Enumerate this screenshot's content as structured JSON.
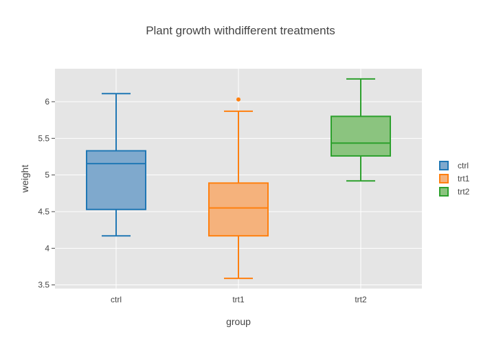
{
  "chart_data": {
    "type": "box",
    "title": "Plant growth withdifferent treatments",
    "xlabel": "group",
    "ylabel": "weight",
    "categories": [
      "ctrl",
      "trt1",
      "trt2"
    ],
    "ylim": [
      3.45,
      6.45
    ],
    "yticks": [
      3.5,
      4,
      4.5,
      5,
      5.5,
      6
    ],
    "ytick_labels": [
      "3.5",
      "4",
      "4.5",
      "5",
      "5.5",
      "6"
    ],
    "grid": true,
    "legend_position": "right",
    "series": [
      {
        "name": "ctrl",
        "color": "#1f77b4",
        "fill": "#7fa9cd",
        "min": 4.17,
        "q1": 4.53,
        "median": 5.155,
        "q3": 5.33,
        "max": 6.11,
        "outliers": []
      },
      {
        "name": "trt1",
        "color": "#ff7f0e",
        "fill": "#f5b27c",
        "min": 3.59,
        "q1": 4.17,
        "median": 4.55,
        "q3": 4.89,
        "max": 5.87,
        "outliers": [
          6.03
        ]
      },
      {
        "name": "trt2",
        "color": "#2ca02c",
        "fill": "#8bc47f",
        "min": 4.92,
        "q1": 5.26,
        "median": 5.435,
        "q3": 5.8,
        "max": 6.31,
        "outliers": []
      }
    ]
  }
}
